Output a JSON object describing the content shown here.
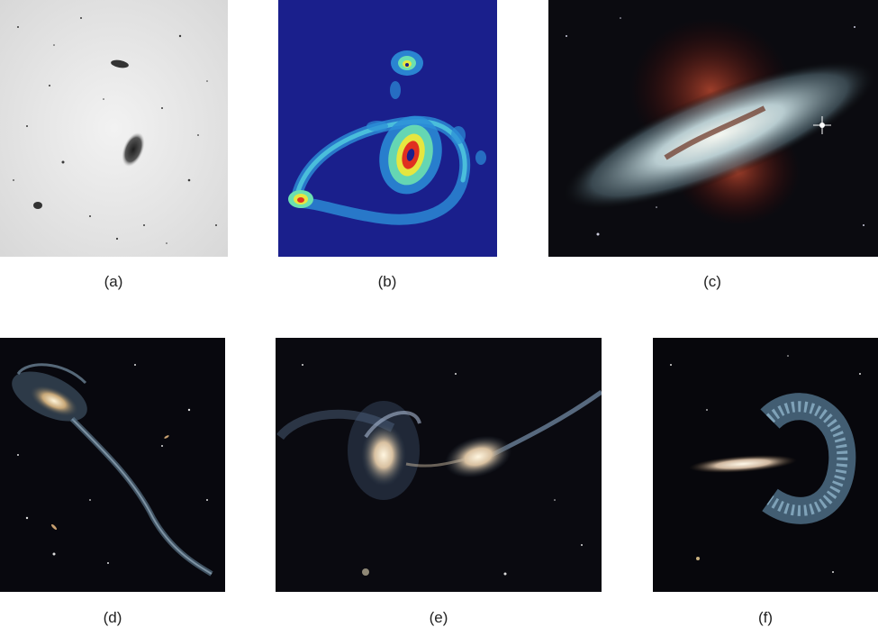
{
  "panels": [
    {
      "id": "a",
      "label": "(a)",
      "depicts": "galaxy-photographic-negative"
    },
    {
      "id": "b",
      "label": "(b)",
      "depicts": "galaxy-false-color-radio-map"
    },
    {
      "id": "c",
      "label": "(c)",
      "depicts": "starburst-galaxy"
    },
    {
      "id": "d",
      "label": "(d)",
      "depicts": "tadpole-galaxy-with-tidal-tail"
    },
    {
      "id": "e",
      "label": "(e)",
      "depicts": "interacting-galaxy-pair"
    },
    {
      "id": "f",
      "label": "(f)",
      "depicts": "colliding-ring-galaxy"
    }
  ],
  "colors": {
    "caption_text": "#222222",
    "map_background": "#1a1f8c",
    "space_background": "#0b0b10",
    "negative_background": "#e8e8e8"
  }
}
